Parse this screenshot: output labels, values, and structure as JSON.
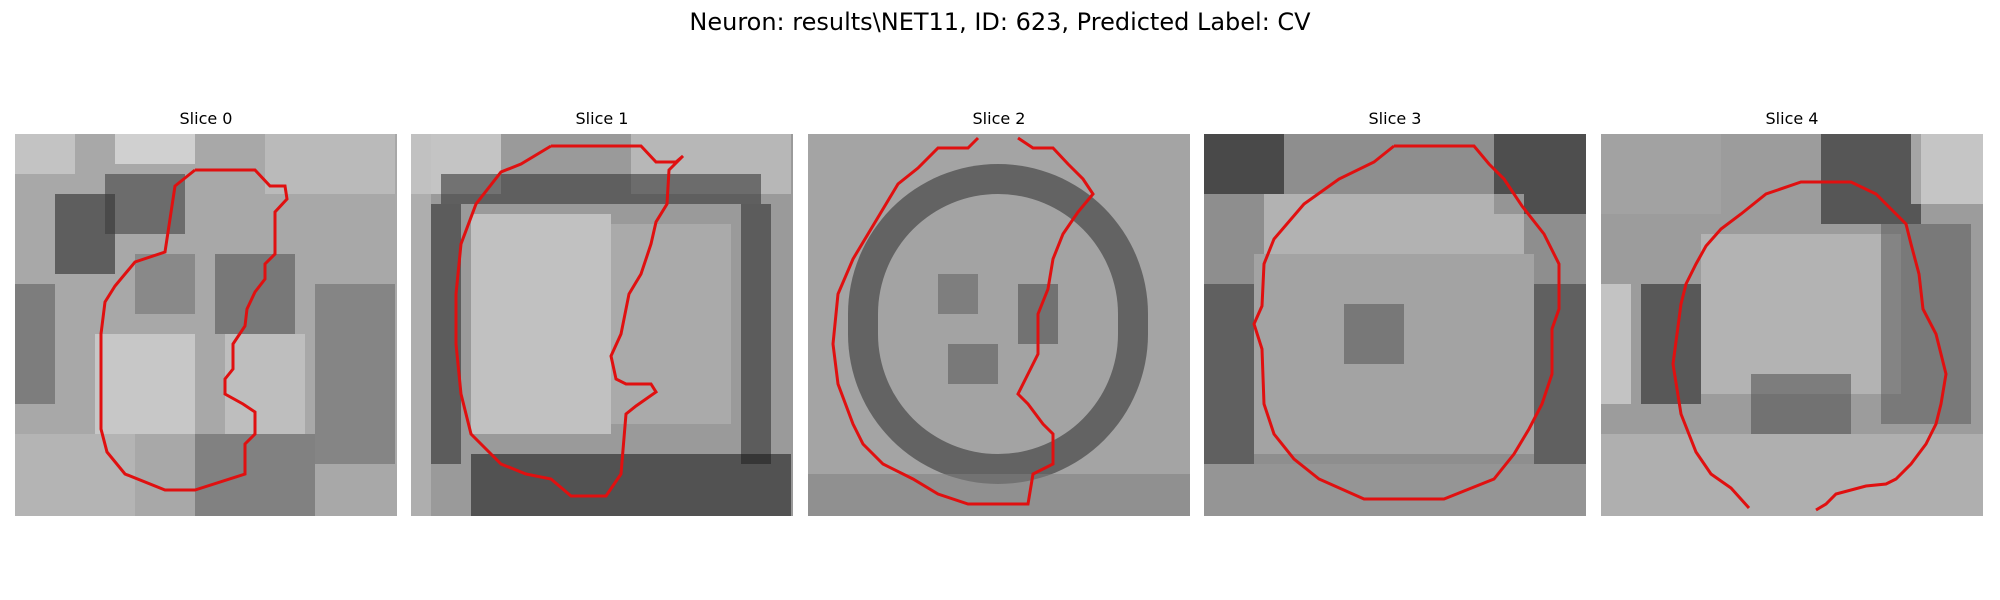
{
  "figure": {
    "title": "Neuron: results\\NET11, ID: 623, Predicted Label: CV"
  },
  "overlay": {
    "contour_color": "#e01010"
  },
  "slices": [
    {
      "title": "Slice 0"
    },
    {
      "title": "Slice 1"
    },
    {
      "title": "Slice 2"
    },
    {
      "title": "Slice 3"
    },
    {
      "title": "Slice 4"
    }
  ]
}
